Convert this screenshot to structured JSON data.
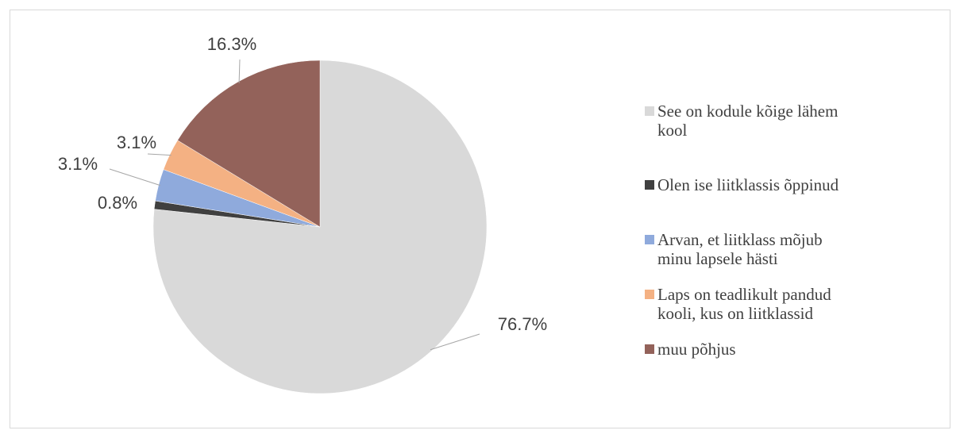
{
  "chart_data": {
    "type": "pie",
    "categories": [
      "See on kodule kõige lähem kool",
      "Olen ise liitklassis õppinud",
      "Arvan, et liitklass mõjub minu lapsele hästi",
      "Laps on teadlikult pandud kooli, kus on liitklassid",
      "muu põhjus"
    ],
    "values": [
      76.7,
      0.8,
      3.1,
      3.1,
      16.3
    ],
    "value_labels": [
      "76.7%",
      "0.8%",
      "3.1%",
      "3.1%",
      "16.3%"
    ],
    "colors": [
      "#d9d9d9",
      "#404040",
      "#8faadc",
      "#f4b183",
      "#93625a"
    ],
    "legend": "right"
  }
}
